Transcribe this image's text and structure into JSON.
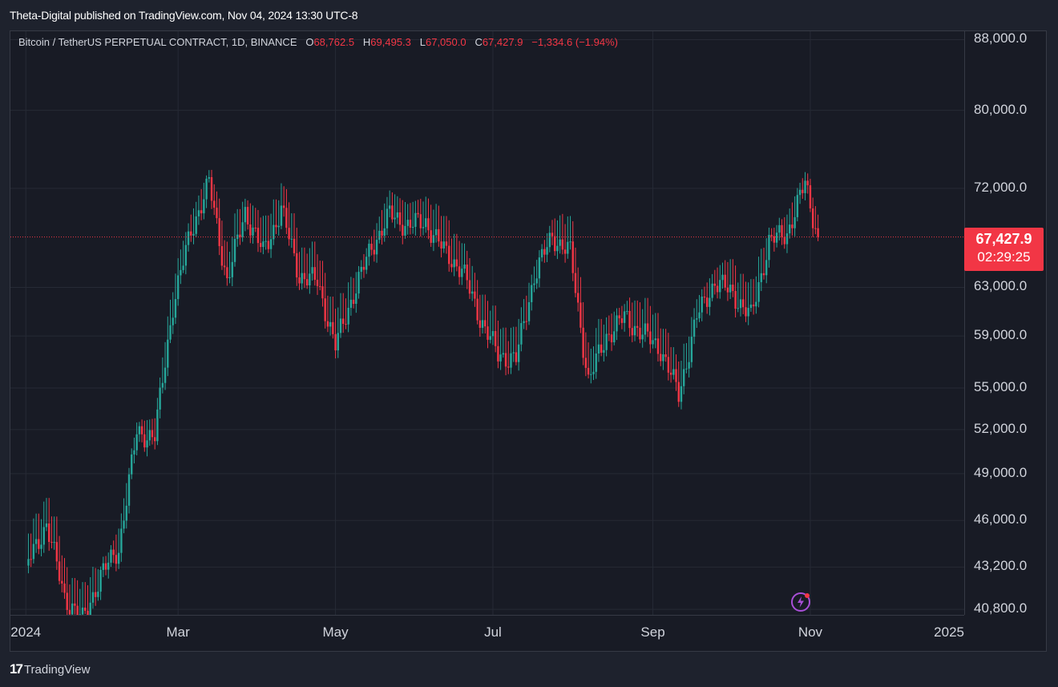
{
  "header": {
    "publisher": "Theta-Digital published on TradingView.com, Nov 04, 2024 13:30 UTC-8"
  },
  "legend": {
    "symbol": "Bitcoin / TetherUS PERPETUAL CONTRACT, 1D, BINANCE",
    "open_label": "O",
    "open": "68,762.5",
    "high_label": "H",
    "high": "69,495.3",
    "low_label": "L",
    "low": "67,050.0",
    "close_label": "C",
    "close": "67,427.9",
    "change": "−1,334.6 (−1.94%)"
  },
  "price_axis": {
    "labels": [
      "88,000.0",
      "80,000.0",
      "72,000.0",
      "63,000.0",
      "59,000.0",
      "55,000.0",
      "52,000.0",
      "49,000.0",
      "46,000.0",
      "43,200.0",
      "40,800.0"
    ],
    "last_price": "67,427.9",
    "countdown": "02:29:25"
  },
  "time_axis": {
    "labels": [
      "2024",
      "Mar",
      "May",
      "Jul",
      "Sep",
      "Nov",
      "2025"
    ]
  },
  "footer": {
    "brand": "TradingView",
    "logo_mark": "17"
  },
  "colors": {
    "up": "#26a69a",
    "down": "#f23645",
    "background": "#181b25",
    "grid": "#262a35"
  },
  "chart_data": {
    "type": "candlestick",
    "scale": "log",
    "ylim": [
      40500,
      89000
    ],
    "x": [
      "2024-01-03",
      "2024-01-10",
      "2024-01-17",
      "2024-01-24",
      "2024-01-31",
      "2024-02-07",
      "2024-02-14",
      "2024-02-21",
      "2024-02-28",
      "2024-03-06",
      "2024-03-13",
      "2024-03-20",
      "2024-03-27",
      "2024-04-03",
      "2024-04-10",
      "2024-04-17",
      "2024-04-24",
      "2024-05-01",
      "2024-05-08",
      "2024-05-15",
      "2024-05-22",
      "2024-05-29",
      "2024-06-05",
      "2024-06-12",
      "2024-06-19",
      "2024-06-26",
      "2024-07-03",
      "2024-07-10",
      "2024-07-17",
      "2024-07-24",
      "2024-07-31",
      "2024-08-07",
      "2024-08-14",
      "2024-08-21",
      "2024-08-28",
      "2024-09-04",
      "2024-09-11",
      "2024-09-18",
      "2024-09-25",
      "2024-10-02",
      "2024-10-09",
      "2024-10-16",
      "2024-10-23",
      "2024-10-30",
      "2024-11-04"
    ],
    "close": [
      43500,
      45800,
      41500,
      40200,
      42700,
      44300,
      51800,
      51500,
      61500,
      68000,
      72500,
      63500,
      69800,
      66000,
      70000,
      64000,
      63500,
      58200,
      62500,
      66500,
      69500,
      68500,
      68800,
      66200,
      64500,
      60500,
      57500,
      57200,
      64000,
      67500,
      66000,
      55500,
      59000,
      60500,
      59200,
      58000,
      54500,
      60500,
      63500,
      62500,
      60500,
      67000,
      67800,
      72500,
      67427.9
    ],
    "high": [
      46000,
      49000,
      46500,
      43500,
      43000,
      45500,
      52500,
      52800,
      64000,
      69500,
      73800,
      69000,
      71000,
      69500,
      72500,
      70500,
      66500,
      64500,
      63800,
      67500,
      71800,
      70500,
      71200,
      70000,
      67500,
      63000,
      61500,
      60000,
      64800,
      69000,
      70000,
      62500,
      60500,
      61600,
      63500,
      61000,
      57000,
      62000,
      64500,
      66000,
      64500,
      67800,
      69500,
      73600,
      69495.3
    ]
  }
}
